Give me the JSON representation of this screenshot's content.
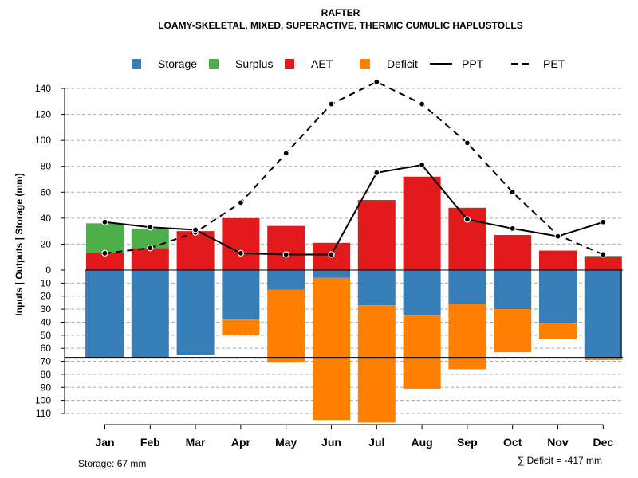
{
  "chart_data": {
    "type": "bar",
    "title": "RAFTER",
    "subtitle": "LOAMY-SKELETAL, MIXED, SUPERACTIVE, THERMIC CUMULIC HAPLUSTOLLS",
    "ylabel": "Inputs | Outputs | Storage    (mm)",
    "categories": [
      "Jan",
      "Feb",
      "Mar",
      "Apr",
      "May",
      "Jun",
      "Jul",
      "Aug",
      "Sep",
      "Oct",
      "Nov",
      "Dec"
    ],
    "upper_ticks": [
      "0",
      "20",
      "40",
      "60",
      "80",
      "100",
      "120",
      "140"
    ],
    "lower_ticks": [
      "0",
      "10",
      "20",
      "30",
      "40",
      "50",
      "60",
      "70",
      "80",
      "90",
      "100",
      "110"
    ],
    "upper_ylim": [
      0,
      145
    ],
    "lower_ylim": [
      0,
      115
    ],
    "series": [
      {
        "name": "AET",
        "color": "#e31a1c",
        "values": [
          13,
          17,
          30,
          40,
          34,
          21,
          54,
          72,
          48,
          27,
          15,
          10
        ]
      },
      {
        "name": "Surplus",
        "color": "#4daf4a",
        "values": [
          23,
          15,
          0,
          0,
          0,
          0,
          0,
          0,
          0,
          0,
          0,
          1
        ]
      },
      {
        "name": "Storage",
        "color": "#377eb8",
        "values": [
          67,
          67,
          65,
          38,
          15,
          6,
          27,
          35,
          26,
          30,
          41,
          67
        ]
      },
      {
        "name": "Deficit",
        "color": "#ff7f00",
        "values": [
          0,
          0,
          0,
          12,
          56,
          109,
          90,
          56,
          50,
          33,
          12,
          2
        ]
      },
      {
        "name": "PPT",
        "values": [
          37,
          33,
          31,
          13,
          12,
          12,
          75,
          81,
          39,
          32,
          26,
          37
        ]
      },
      {
        "name": "PET",
        "values": [
          13,
          17,
          29,
          52,
          90,
          128,
          145,
          128,
          98,
          60,
          27,
          12
        ]
      }
    ],
    "legend": [
      {
        "label": "Storage",
        "kind": "box",
        "color": "#377eb8"
      },
      {
        "label": "Surplus",
        "kind": "box",
        "color": "#4daf4a"
      },
      {
        "label": "AET",
        "kind": "box",
        "color": "#e31a1c"
      },
      {
        "label": "Deficit",
        "kind": "box",
        "color": "#ff7f00"
      },
      {
        "label": "PPT",
        "kind": "solid"
      },
      {
        "label": "PET",
        "kind": "dashed"
      }
    ],
    "storage_capacity": 67,
    "storage_label": "Storage: 67 mm",
    "deficit_label": "∑ Deficit = -417 mm"
  }
}
